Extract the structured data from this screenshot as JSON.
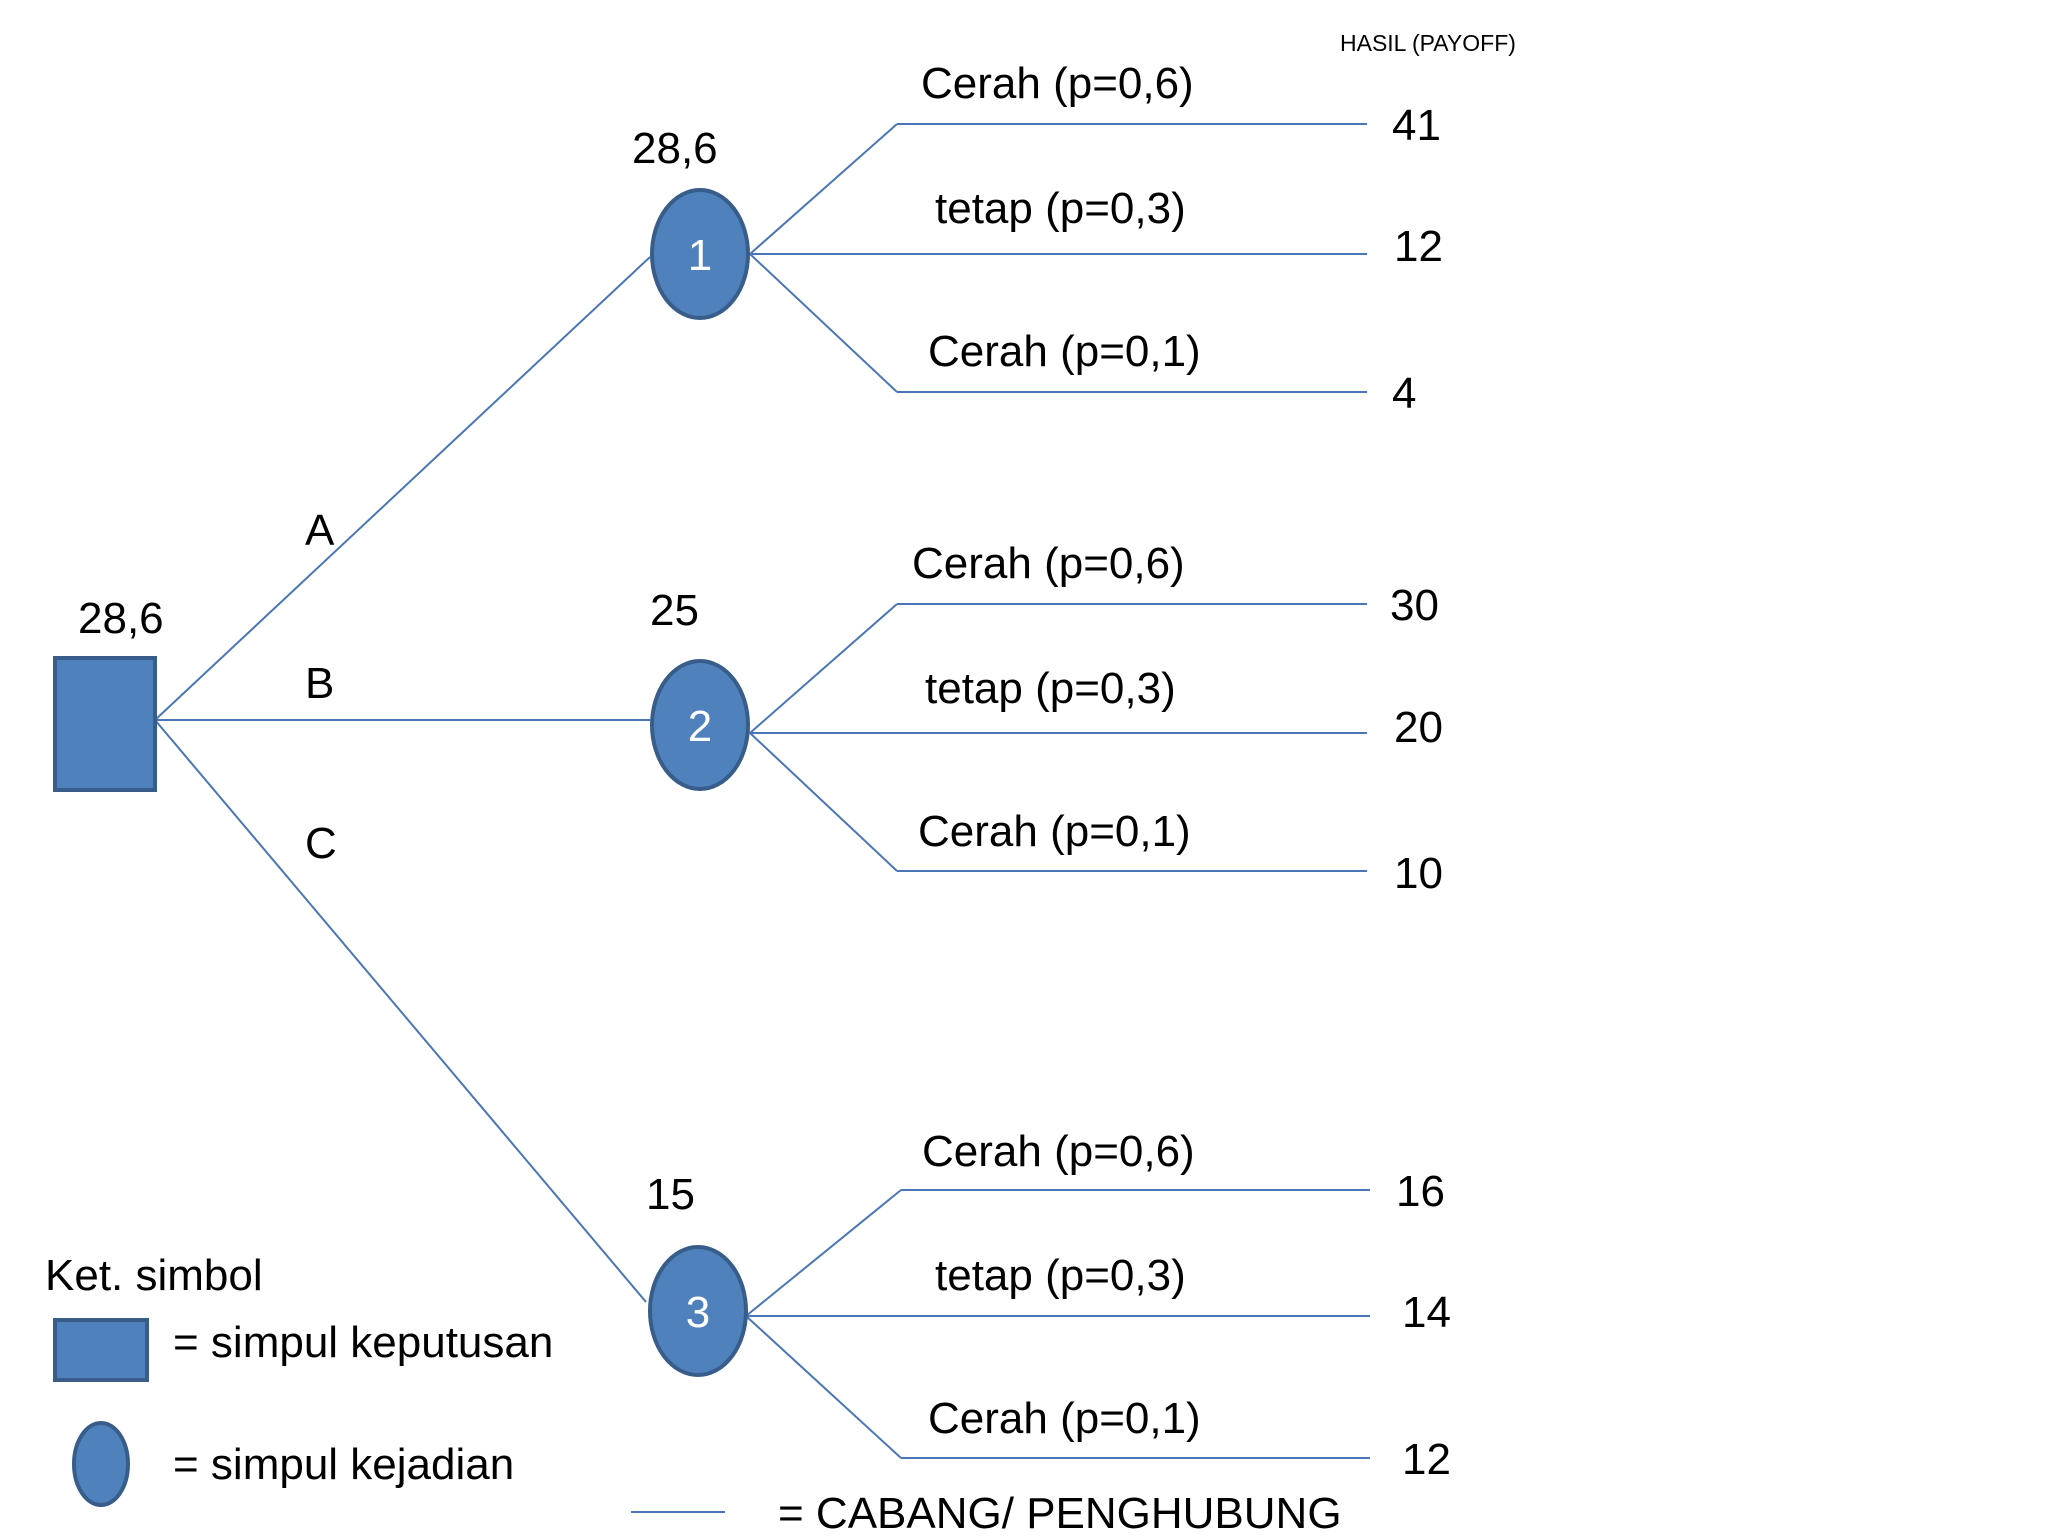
{
  "header": {
    "payoff_title": "HASIL (PAYOFF)"
  },
  "decision_node": {
    "value": "28,6"
  },
  "alternatives": [
    {
      "label": "A"
    },
    {
      "label": "B"
    },
    {
      "label": "C"
    }
  ],
  "chance_nodes": [
    {
      "number": "1",
      "expected_value": "28,6",
      "outcomes": [
        {
          "label": "Cerah (p=0,6)",
          "payoff": "41"
        },
        {
          "label": "tetap (p=0,3)",
          "payoff": "12"
        },
        {
          "label": "Cerah (p=0,1)",
          "payoff": "4"
        }
      ]
    },
    {
      "number": "2",
      "expected_value": "25",
      "outcomes": [
        {
          "label": "Cerah (p=0,6)",
          "payoff": "30"
        },
        {
          "label": "tetap (p=0,3)",
          "payoff": "20"
        },
        {
          "label": "Cerah (p=0,1)",
          "payoff": "10"
        }
      ]
    },
    {
      "number": "3",
      "expected_value": "15",
      "outcomes": [
        {
          "label": "Cerah (p=0,6)",
          "payoff": "16"
        },
        {
          "label": "tetap (p=0,3)",
          "payoff": "14"
        },
        {
          "label": "Cerah (p=0,1)",
          "payoff": "12"
        }
      ]
    }
  ],
  "legend": {
    "title": "Ket. simbol",
    "decision_node": "= simpul keputusan",
    "chance_node": "= simpul kejadian",
    "branch": "= CABANG/ PENGHUBUNG"
  },
  "colors": {
    "node_fill": "#4f81bd",
    "node_stroke": "#385d8a",
    "branch_line": "#4a76b6"
  }
}
